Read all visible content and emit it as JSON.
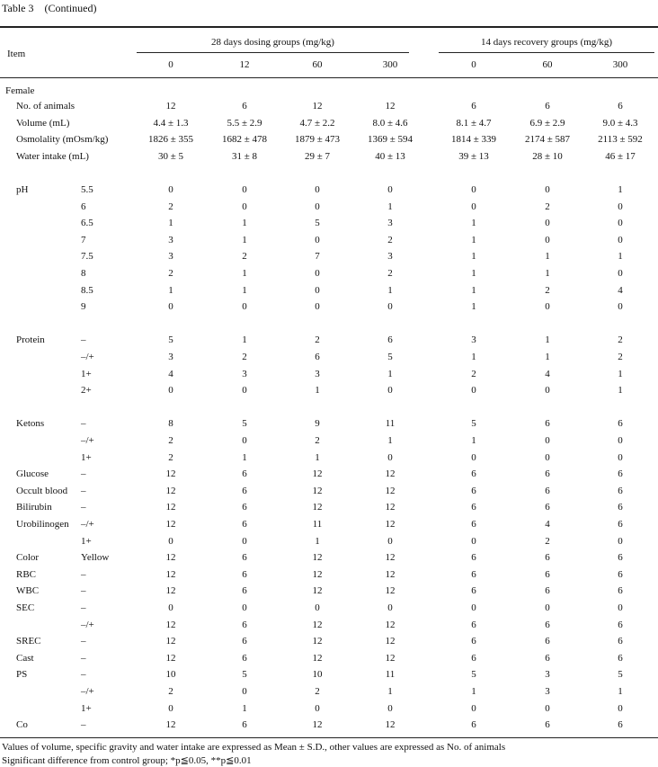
{
  "title": "Table 3　(Continued)",
  "header": {
    "item": "Item",
    "groups": [
      {
        "label": "28 days dosing groups (mg/kg)",
        "doses": [
          "0",
          "12",
          "60",
          "300"
        ]
      },
      {
        "label": "14 days recovery groups (mg/kg)",
        "doses": [
          "0",
          "60",
          "300"
        ]
      }
    ]
  },
  "sex": "Female",
  "sections": [
    {
      "rows": [
        {
          "item": "No. of animals",
          "values": [
            "12",
            "6",
            "12",
            "12",
            "6",
            "6",
            "6"
          ]
        },
        {
          "item": "Volume (mL)",
          "values": [
            "4.4 ± 1.3",
            "5.5 ± 2.9",
            "4.7 ± 2.2",
            "8.0 ± 4.6",
            "8.1 ± 4.7",
            "6.9 ± 2.9",
            "9.0 ± 4.3"
          ]
        },
        {
          "item": "Osmolality (mOsm/kg)",
          "values": [
            "1826 ± 355",
            "1682 ± 478",
            "1879 ± 473",
            "1369 ± 594",
            "1814 ± 339",
            "2174 ± 587",
            "2113 ± 592"
          ]
        },
        {
          "item": "Water intake (mL)",
          "values": [
            "30 ± 5",
            "31 ± 8",
            "29 ± 7",
            "40 ± 13",
            "39 ± 13",
            "28 ± 10",
            "46 ± 17"
          ]
        }
      ]
    },
    {
      "rows": [
        {
          "item": "pH",
          "sub": "5.5",
          "values": [
            "0",
            "0",
            "0",
            "0",
            "0",
            "0",
            "1"
          ]
        },
        {
          "sub": "6",
          "values": [
            "2",
            "0",
            "0",
            "1",
            "0",
            "2",
            "0"
          ]
        },
        {
          "sub": "6.5",
          "values": [
            "1",
            "1",
            "5",
            "3",
            "1",
            "0",
            "0"
          ]
        },
        {
          "sub": "7",
          "values": [
            "3",
            "1",
            "0",
            "2",
            "1",
            "0",
            "0"
          ]
        },
        {
          "sub": "7.5",
          "values": [
            "3",
            "2",
            "7",
            "3",
            "1",
            "1",
            "1"
          ]
        },
        {
          "sub": "8",
          "values": [
            "2",
            "1",
            "0",
            "2",
            "1",
            "1",
            "0"
          ]
        },
        {
          "sub": "8.5",
          "values": [
            "1",
            "1",
            "0",
            "1",
            "1",
            "2",
            "4"
          ]
        },
        {
          "sub": "9",
          "values": [
            "0",
            "0",
            "0",
            "0",
            "1",
            "0",
            "0"
          ]
        }
      ]
    },
    {
      "rows": [
        {
          "item": "Protein",
          "sub": "–",
          "values": [
            "5",
            "1",
            "2",
            "6",
            "3",
            "1",
            "2"
          ]
        },
        {
          "sub": "–/+",
          "values": [
            "3",
            "2",
            "6",
            "5",
            "1",
            "1",
            "2"
          ]
        },
        {
          "sub": "1+",
          "values": [
            "4",
            "3",
            "3",
            "1",
            "2",
            "4",
            "1"
          ]
        },
        {
          "sub": "2+",
          "values": [
            "0",
            "0",
            "1",
            "0",
            "0",
            "0",
            "1"
          ]
        }
      ]
    },
    {
      "rows": [
        {
          "item": "Ketons",
          "sub": "–",
          "values": [
            "8",
            "5",
            "9",
            "11",
            "5",
            "6",
            "6"
          ]
        },
        {
          "sub": "–/+",
          "values": [
            "2",
            "0",
            "2",
            "1",
            "1",
            "0",
            "0"
          ]
        },
        {
          "sub": "1+",
          "values": [
            "2",
            "1",
            "1",
            "0",
            "0",
            "0",
            "0"
          ]
        },
        {
          "item": "Glucose",
          "sub": "–",
          "values": [
            "12",
            "6",
            "12",
            "12",
            "6",
            "6",
            "6"
          ]
        },
        {
          "item": "Occult blood",
          "sub": "–",
          "values": [
            "12",
            "6",
            "12",
            "12",
            "6",
            "6",
            "6"
          ]
        },
        {
          "item": "Bilirubin",
          "sub": "–",
          "values": [
            "12",
            "6",
            "12",
            "12",
            "6",
            "6",
            "6"
          ]
        },
        {
          "item": "Urobilinogen",
          "sub": "–/+",
          "values": [
            "12",
            "6",
            "11",
            "12",
            "6",
            "4",
            "6"
          ]
        },
        {
          "sub": "1+",
          "values": [
            "0",
            "0",
            "1",
            "0",
            "0",
            "2",
            "0"
          ]
        },
        {
          "item": "Color",
          "sub": "Yellow",
          "values": [
            "12",
            "6",
            "12",
            "12",
            "6",
            "6",
            "6"
          ]
        },
        {
          "item": "RBC",
          "sub": "–",
          "values": [
            "12",
            "6",
            "12",
            "12",
            "6",
            "6",
            "6"
          ]
        },
        {
          "item": "WBC",
          "sub": "–",
          "values": [
            "12",
            "6",
            "12",
            "12",
            "6",
            "6",
            "6"
          ]
        },
        {
          "item": "SEC",
          "sub": "–",
          "values": [
            "0",
            "0",
            "0",
            "0",
            "0",
            "0",
            "0"
          ]
        },
        {
          "sub": "–/+",
          "values": [
            "12",
            "6",
            "12",
            "12",
            "6",
            "6",
            "6"
          ]
        },
        {
          "item": "SREC",
          "sub": "–",
          "values": [
            "12",
            "6",
            "12",
            "12",
            "6",
            "6",
            "6"
          ]
        },
        {
          "item": "Cast",
          "sub": "–",
          "values": [
            "12",
            "6",
            "12",
            "12",
            "6",
            "6",
            "6"
          ]
        },
        {
          "item": "PS",
          "sub": "–",
          "values": [
            "10",
            "5",
            "10",
            "11",
            "5",
            "3",
            "5"
          ]
        },
        {
          "sub": "–/+",
          "values": [
            "2",
            "0",
            "2",
            "1",
            "1",
            "3",
            "1"
          ]
        },
        {
          "sub": "1+",
          "values": [
            "0",
            "1",
            "0",
            "0",
            "0",
            "0",
            "0"
          ]
        },
        {
          "item": "Co",
          "sub": "–",
          "values": [
            "12",
            "6",
            "12",
            "12",
            "6",
            "6",
            "6"
          ]
        }
      ]
    }
  ],
  "footnotes": [
    "Values of volume, specific gravity and water intake are expressed as Mean ± S.D., other values are expressed as No. of animals",
    "Significant difference from control group; *p≦0.05, **p≦0.01"
  ]
}
